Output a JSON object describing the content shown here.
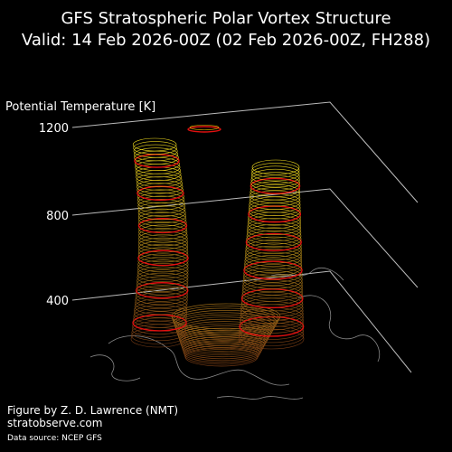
{
  "header": {
    "title_line1": "GFS Stratospheric Polar Vortex Structure",
    "title_line2": "Valid: 14 Feb 2026-00Z  (02 Feb 2026-00Z, FH288)"
  },
  "axis": {
    "label": "Potential Temperature [K]",
    "ticks": [
      "1200",
      "800",
      "400"
    ]
  },
  "credits": {
    "author": "Figure by Z. D. Lawrence (NMT)",
    "site": "stratobserve.com",
    "source": "Data source: NCEP GFS"
  }
}
